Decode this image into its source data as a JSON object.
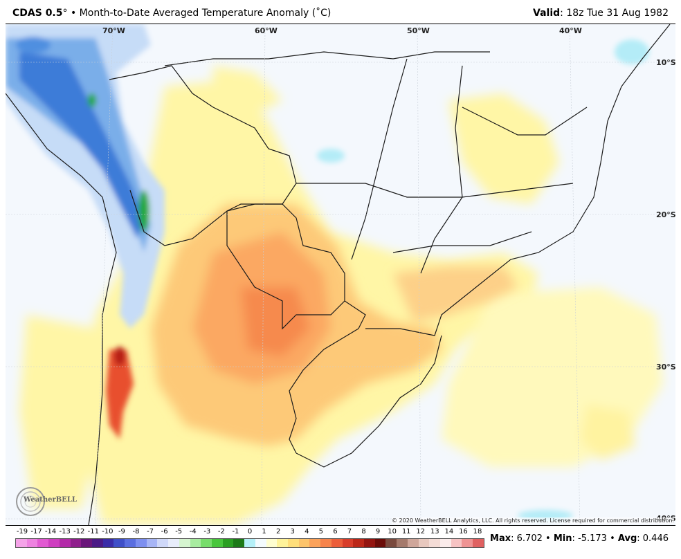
{
  "header": {
    "model": "CDAS 0.5",
    "degree_mark": "°",
    "separator": "•",
    "title": "Month-to-Date Averaged Temperature Anomaly (˚C)",
    "valid_label": "Valid",
    "valid_time": "18z Tue 31 Aug 1982"
  },
  "map": {
    "longitude_labels": [
      "70°W",
      "60°W",
      "50°W",
      "40°W"
    ],
    "latitude_labels": [
      "10°S",
      "20°S",
      "30°S",
      "40°S"
    ],
    "copyright": "© 2020 WeatherBELL Analytics, LLC. All rights reserved. License required for commercial distribution.",
    "logo_text": "WeatherBELL"
  },
  "colorbar": {
    "labels": [
      "-19",
      "-17",
      "-14",
      "-13",
      "-12",
      "-11",
      "-10",
      "-9",
      "-8",
      "-7",
      "-6",
      "-5",
      "-4",
      "-3",
      "-2",
      "-1",
      "0",
      "1",
      "2",
      "3",
      "4",
      "5",
      "6",
      "7",
      "8",
      "9",
      "10",
      "11",
      "12",
      "13",
      "14",
      "16",
      "18"
    ],
    "colors": [
      "#f5a3e8",
      "#ee82e0",
      "#e25ad2",
      "#cf3ec0",
      "#b32aa8",
      "#8f1f8c",
      "#6a167a",
      "#4b1a86",
      "#3a2ca8",
      "#3f4fc8",
      "#5a6ee0",
      "#7d8ff0",
      "#a7b5f6",
      "#cfd8f9",
      "#e8edfb",
      "#d6f5d0",
      "#a8eca0",
      "#77dd6b",
      "#48c63c",
      "#2a9f22",
      "#1c7a18",
      "#b5f0f8",
      "#f4fbfe",
      "#fffed0",
      "#fff39a",
      "#ffde7a",
      "#fdc46b",
      "#fba25a",
      "#f6834b",
      "#ec5e3a",
      "#d83d2a",
      "#bb2718",
      "#941510",
      "#6b0c08",
      "#7a4a3e",
      "#a57a6c",
      "#cfa69a",
      "#e8c8be",
      "#f4dcd6",
      "#fbeceb",
      "#f7c3c3",
      "#ef9393",
      "#e06161"
    ]
  },
  "stats": {
    "max_label": "Max",
    "max_value": "6.702",
    "min_label": "Min",
    "min_value": "-5.173",
    "avg_label": "Avg",
    "avg_value": "0.446",
    "bullet": "•"
  }
}
